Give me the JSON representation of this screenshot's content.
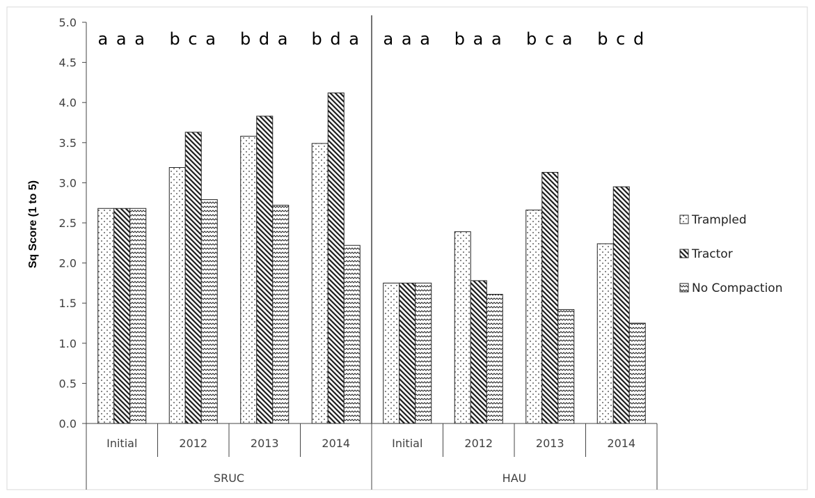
{
  "chart_data": {
    "type": "bar",
    "ylabel": "Sq Score (1 to 5)",
    "ylim": [
      0,
      5
    ],
    "yticks": [
      "0.0",
      "0.5",
      "1.0",
      "1.5",
      "2.0",
      "2.5",
      "3.0",
      "3.5",
      "4.0",
      "4.5",
      "5.0"
    ],
    "legend_position": "right",
    "grid": false,
    "groups": [
      {
        "name": "SRUC",
        "categories": [
          "Initial",
          "2012",
          "2013",
          "2014"
        ]
      },
      {
        "name": "HAU",
        "categories": [
          "Initial",
          "2012",
          "2013",
          "2014"
        ]
      }
    ],
    "series": [
      {
        "name": "Trampled",
        "pattern": "dots",
        "values": [
          2.68,
          3.19,
          3.58,
          3.49,
          1.75,
          2.39,
          2.66,
          2.24
        ]
      },
      {
        "name": "Tractor",
        "pattern": "diagonal",
        "values": [
          2.68,
          3.63,
          3.83,
          4.12,
          1.75,
          1.78,
          3.13,
          2.95
        ]
      },
      {
        "name": "No Compaction",
        "pattern": "zigzag",
        "values": [
          2.68,
          2.79,
          2.72,
          2.22,
          1.75,
          1.61,
          1.42,
          1.25
        ]
      }
    ],
    "significance_letters": [
      "a a a",
      "b c a",
      "b d a",
      "b d a",
      "a a a",
      "b a a",
      "b c a",
      "b c d"
    ]
  }
}
